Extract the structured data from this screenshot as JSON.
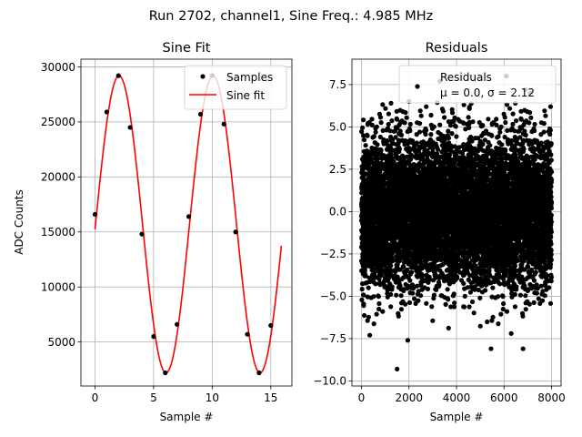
{
  "suptitle": "Run 2702, channel1, Sine Freq.: 4.985 MHz",
  "chart_data": [
    {
      "type": "scatter+line",
      "title": "Sine Fit",
      "xlabel": "Sample #",
      "ylabel": "ADC Counts",
      "xlim": [
        -1.2,
        16.8
      ],
      "ylim": [
        1000,
        30700
      ],
      "xticks": [
        0,
        5,
        10,
        15
      ],
      "xtick_labels": [
        "0",
        "5",
        "10",
        "15"
      ],
      "yticks": [
        5000,
        10000,
        15000,
        20000,
        25000,
        30000
      ],
      "ytick_labels": [
        "5000",
        "10000",
        "15000",
        "20000",
        "25000",
        "30000"
      ],
      "grid": true,
      "legend": {
        "placement": "top-right",
        "entries": [
          "Samples",
          "Sine fit"
        ]
      },
      "series": [
        {
          "name": "Samples",
          "kind": "scatter",
          "color": "#000000",
          "x": [
            0,
            1,
            2,
            3,
            4,
            5,
            6,
            7,
            8,
            9,
            10,
            11,
            12,
            13,
            14,
            15
          ],
          "y": [
            16600,
            25900,
            29200,
            24500,
            14800,
            5500,
            2200,
            6600,
            16400,
            25700,
            29200,
            24800,
            15000,
            5700,
            2200,
            6500
          ]
        },
        {
          "name": "Sine fit",
          "kind": "line",
          "color": "#ff0000",
          "model": {
            "amplitude": 13500,
            "offset": 15700,
            "period": 8.02,
            "peak_at": 2.05,
            "x_start": 0,
            "x_end": 15.9
          }
        }
      ]
    },
    {
      "type": "scatter",
      "title": "Residuals",
      "xlabel": "Sample #",
      "ylabel": "",
      "xlim": [
        -400,
        8400
      ],
      "ylim": [
        -10.3,
        9.0
      ],
      "xticks": [
        0,
        2000,
        4000,
        6000,
        8000
      ],
      "xtick_labels": [
        "0",
        "2000",
        "4000",
        "6000",
        "8000"
      ],
      "yticks": [
        -10.0,
        -7.5,
        -5.0,
        -2.5,
        0.0,
        2.5,
        5.0,
        7.5
      ],
      "ytick_labels": [
        "−10.0",
        "−7.5",
        "−5.0",
        "−2.5",
        "0.0",
        "2.5",
        "5.0",
        "7.5"
      ],
      "grid": true,
      "legend": {
        "placement": "top-right",
        "entries": [
          "Residuals"
        ],
        "stats_text": "μ = 0.0, σ = 2.12"
      },
      "series": [
        {
          "name": "Residuals",
          "color": "#000000",
          "distribution": {
            "n_points": 8000,
            "x_range": [
              0,
              8000
            ],
            "mean": 0.0,
            "std": 2.12
          },
          "highlight_points": [
            {
              "x": 1500,
              "y": -9.3
            },
            {
              "x": 1950,
              "y": -7.6
            },
            {
              "x": 350,
              "y": -7.3
            },
            {
              "x": 5450,
              "y": -8.1
            },
            {
              "x": 6800,
              "y": -8.1
            },
            {
              "x": 6300,
              "y": -7.2
            },
            {
              "x": 6900,
              "y": 7.2
            },
            {
              "x": 2000,
              "y": 6.5
            },
            {
              "x": 6100,
              "y": 8.0
            },
            {
              "x": 3300,
              "y": 7.7
            },
            {
              "x": 7100,
              "y": 7.0
            }
          ]
        }
      ]
    }
  ]
}
